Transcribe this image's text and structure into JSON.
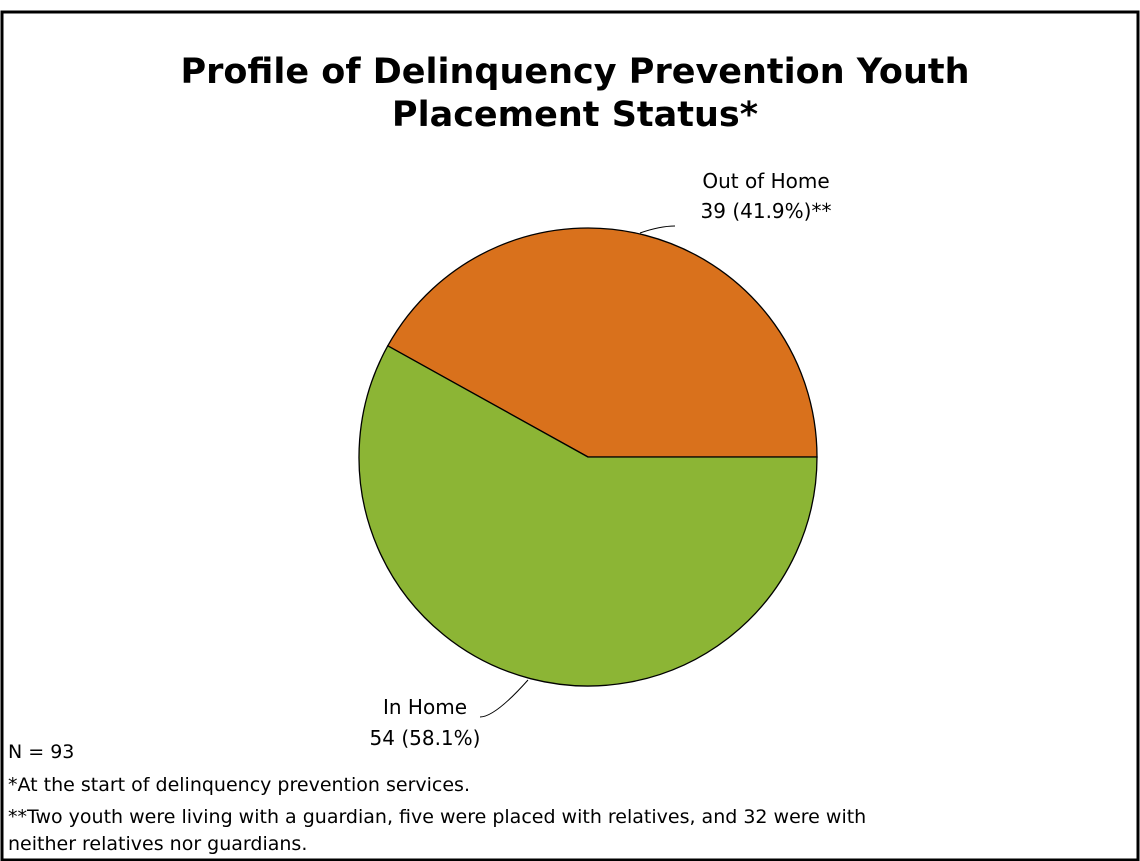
{
  "chart_data": {
    "type": "pie",
    "title": [
      "Profile of Delinquency Prevention Youth",
      "Placement Status*"
    ],
    "categories": [
      "Out of Home",
      "In Home"
    ],
    "values": [
      39,
      54
    ],
    "value_labels": [
      "39 (41.9%)**",
      "54 (58.1%)"
    ],
    "colors": [
      "#d9711c",
      "#8cb535"
    ],
    "n_label": "N = 93",
    "footnotes": [
      "*At the start of delinquency prevention services.",
      "**Two youth were living with a guardian, five were placed with relatives, and 32 were with",
      "neither relatives nor guardians."
    ]
  }
}
